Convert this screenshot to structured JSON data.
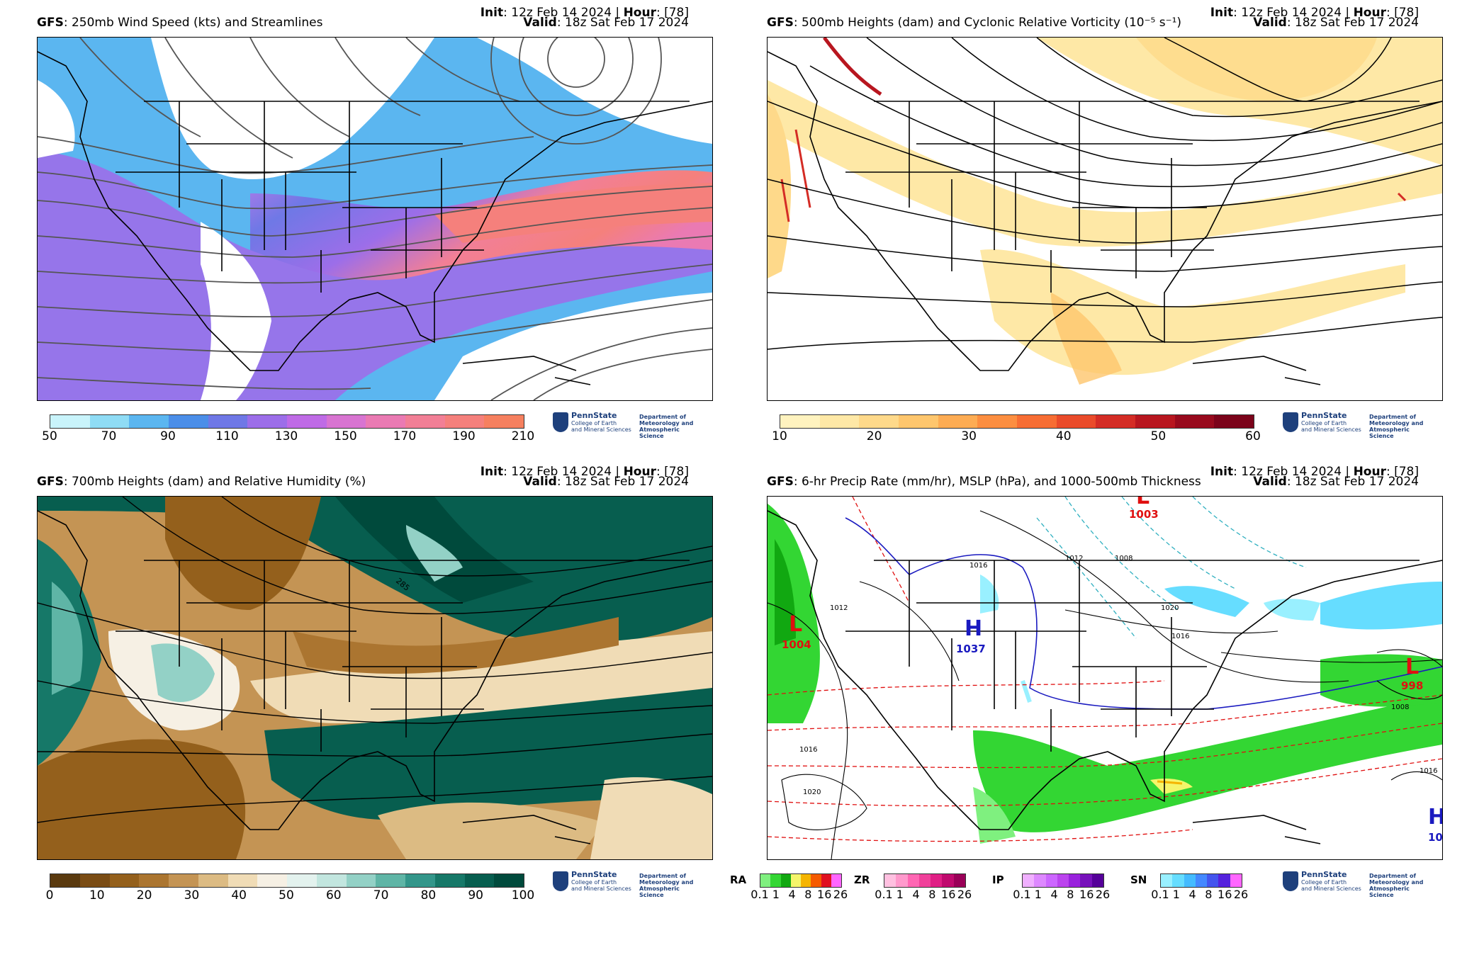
{
  "panels": [
    {
      "title_model": "GFS",
      "title_rest": ": 250mb Wind Speed (kts) and Streamlines",
      "init_label": "Init",
      "init_value": ": 12z Feb 14 2024 | ",
      "hour_label": "Hour",
      "hour_value": ": [78]",
      "valid_label": "Valid",
      "valid_value": ": 18z Sat Feb 17 2024",
      "colorbar_ticks": [
        "50",
        "70",
        "90",
        "110",
        "130",
        "150",
        "170",
        "190",
        "210"
      ],
      "colorbar_colors": [
        "#c9f4fb",
        "#8fdcf5",
        "#5bb6f0",
        "#4b8ee8",
        "#6f78e6",
        "#9c6ee9",
        "#bf6be6",
        "#d874d1",
        "#ea7ab3",
        "#f27f96",
        "#f5807c",
        "#f6805f"
      ]
    },
    {
      "title_model": "GFS",
      "title_rest": ": 500mb Heights (dam) and Cyclonic Relative Vorticity (10⁻⁵ s⁻¹)",
      "init_label": "Init",
      "init_value": ": 12z Feb 14 2024 | ",
      "hour_label": "Hour",
      "hour_value": ": [78]",
      "valid_label": "Valid",
      "valid_value": ": 18z Sat Feb 17 2024",
      "colorbar_ticks": [
        "10",
        "20",
        "30",
        "40",
        "50",
        "60"
      ],
      "colorbar_colors": [
        "#fff3bf",
        "#fee8a6",
        "#fed98a",
        "#fec66d",
        "#fdac53",
        "#fc8e40",
        "#f76d33",
        "#ea4b2a",
        "#d42c25",
        "#b8161f",
        "#980a1d",
        "#7b031a"
      ]
    },
    {
      "title_model": "GFS",
      "title_rest": ": 700mb Heights (dam) and Relative Humidity (%)",
      "init_label": "Init",
      "init_value": ": 12z Feb 14 2024 | ",
      "hour_label": "Hour",
      "hour_value": ": [78]",
      "valid_label": "Valid",
      "valid_value": ": 18z Sat Feb 17 2024",
      "colorbar_ticks": [
        "0",
        "10",
        "20",
        "30",
        "40",
        "50",
        "60",
        "70",
        "80",
        "90",
        "100"
      ],
      "colorbar_colors": [
        "#5a3a0f",
        "#7a4c14",
        "#94601c",
        "#ab7530",
        "#c49454",
        "#dcbb83",
        "#f0dcb6",
        "#f6f0e4",
        "#e3f2ee",
        "#c2e6df",
        "#93d1c6",
        "#5fb5a6",
        "#33968a",
        "#167868",
        "#075e4f",
        "#004a3c"
      ],
      "contour_label": "285"
    },
    {
      "title_model": "GFS",
      "title_rest": ": 6-hr Precip Rate (mm/hr), MSLP (hPa), and 1000-500mb Thickness",
      "init_label": "Init",
      "init_value": ": 12z Feb 14 2024 | ",
      "hour_label": "Hour",
      "hour_value": ": [78]",
      "valid_label": "Valid",
      "valid_value": ": 18z Sat Feb 17 2024",
      "precip_groups": [
        {
          "label": "RA",
          "colors": [
            "#7ff07f",
            "#33d633",
            "#11a811",
            "#f5f56a",
            "#f5b400",
            "#f55a00",
            "#e01020",
            "#ff66ff"
          ]
        },
        {
          "label": "ZR",
          "colors": [
            "#ffc0e0",
            "#ff99cc",
            "#ff66b3",
            "#f0409a",
            "#e01f85",
            "#c00a6e",
            "#9a0058"
          ]
        },
        {
          "label": "IP",
          "colors": [
            "#f0b0ff",
            "#dd88ff",
            "#cc66ff",
            "#bb44ee",
            "#9922dd",
            "#7711bb",
            "#550099"
          ]
        },
        {
          "label": "SN",
          "colors": [
            "#99f0ff",
            "#66ddff",
            "#44bbff",
            "#4488ff",
            "#4455ee",
            "#5522dd",
            "#ff66ff"
          ]
        }
      ],
      "precip_ticks": [
        "0.1",
        "1",
        "4",
        "8",
        "16",
        "26"
      ],
      "highs_lows": [
        {
          "type": "L",
          "value": "1003"
        },
        {
          "type": "L",
          "value": "1004"
        },
        {
          "type": "H",
          "value": "1037"
        },
        {
          "type": "L",
          "value": "998"
        },
        {
          "type": "H",
          "value": "10"
        }
      ],
      "isobar_labels": [
        "1012",
        "1016",
        "1020",
        "1016",
        "1008",
        "1012",
        "1016",
        "1020",
        "1008",
        "1016"
      ]
    }
  ],
  "logo": {
    "name": "PennState",
    "college_line1": "College of Earth",
    "college_line2": "and Mineral Sciences",
    "dept_line1": "Department of",
    "dept_line2": "Meteorology and",
    "dept_line3": "Atmospheric Science"
  }
}
